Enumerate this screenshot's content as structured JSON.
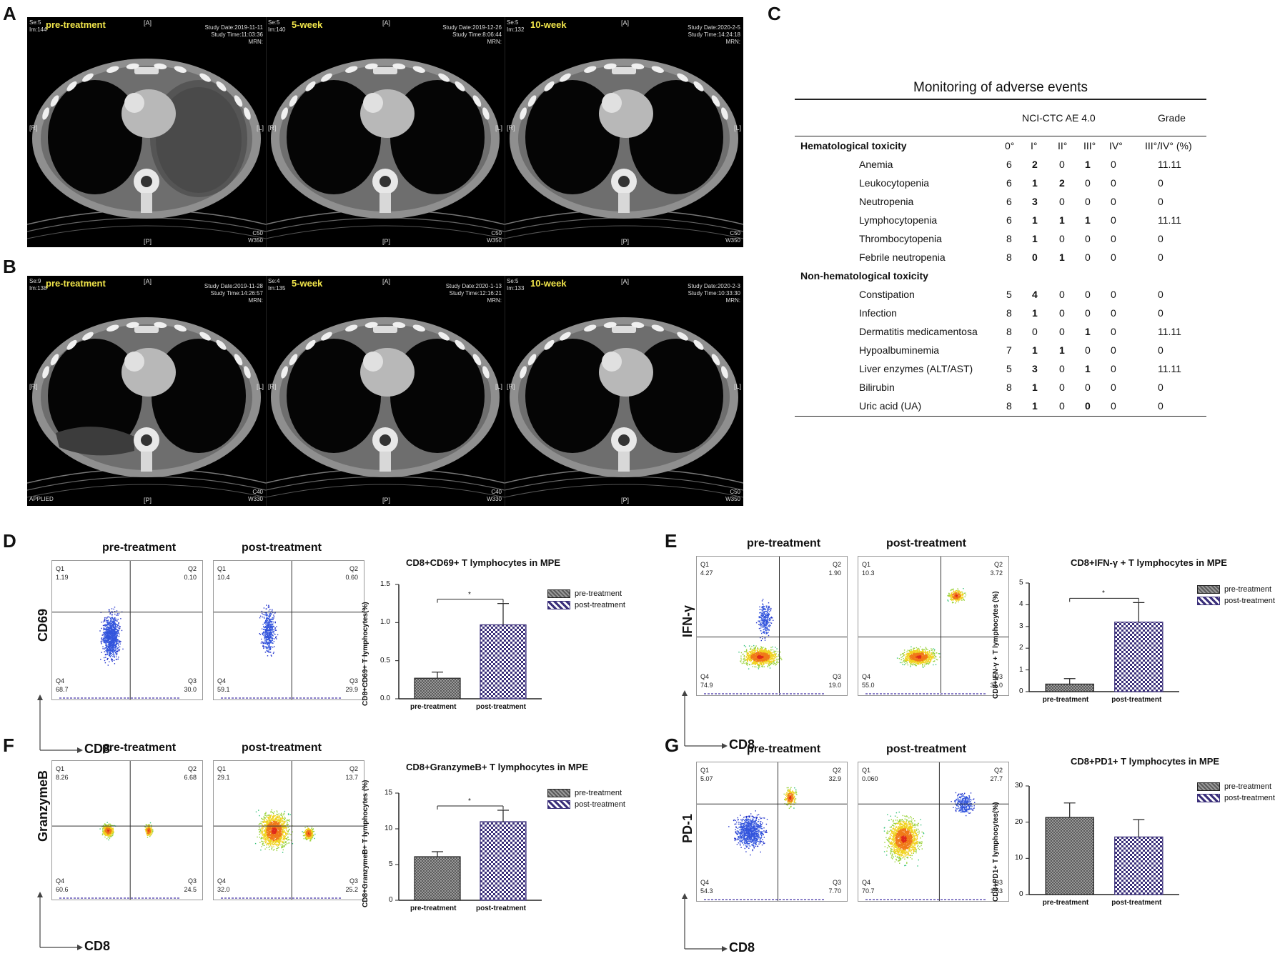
{
  "panels": {
    "A": "A",
    "B": "B",
    "C": "C",
    "D": "D",
    "E": "E",
    "F": "F",
    "G": "G"
  },
  "ct": {
    "markers": {
      "A": "[A]",
      "P": "[P]",
      "R": "[R]",
      "L": "[L]"
    },
    "rowA": [
      {
        "se": "Se:5",
        "im": "Im:144",
        "stage": "pre-treatment",
        "date": "Study Date:2019-11-11",
        "time": "Study Time:11:03:36",
        "mrn": "MRN:",
        "c": "C50",
        "w": "W350",
        "bl": ""
      },
      {
        "se": "Se:5",
        "im": "Im:140",
        "stage": "5-week",
        "date": "Study Date:2019-12-26",
        "time": "Study Time:8:06:44",
        "mrn": "MRN:",
        "c": "C50",
        "w": "W350",
        "bl": ""
      },
      {
        "se": "Se:5",
        "im": "Im:132",
        "stage": "10-week",
        "date": "Study Date:2020-2-5",
        "time": "Study Time:14:24:18",
        "mrn": "MRN:",
        "c": "C50",
        "w": "W350",
        "bl": ""
      }
    ],
    "rowB": [
      {
        "se": "Se:9",
        "im": "Im:138",
        "stage": "pre-treatment",
        "date": "Study Date:2019-11-28",
        "time": "Study Time:14:26:57",
        "mrn": "MRN:",
        "c": "C40",
        "w": "W330",
        "bl": "APPLIED"
      },
      {
        "se": "Se:4",
        "im": "Im:135",
        "stage": "5-week",
        "date": "Study Date:2020-1-13",
        "time": "Study Time:12:16:21",
        "mrn": "MRN:",
        "c": "C40",
        "w": "W330",
        "bl": ""
      },
      {
        "se": "Se:5",
        "im": "Im:133",
        "stage": "10-week",
        "date": "Study Date:2020-2-3",
        "time": "Study Time:10:33:30",
        "mrn": "MRN:",
        "c": "C50",
        "w": "W350",
        "bl": ""
      }
    ]
  },
  "table": {
    "title": "Monitoring of adverse events",
    "header_group": "NCI-CTC AE 4.0",
    "header_grade": "Grade",
    "cols": [
      "0°",
      "I°",
      "II°",
      "III°",
      "IV°",
      "III°/IV° (%)"
    ],
    "sections": [
      {
        "name": "Hematological toxicity",
        "rows": [
          {
            "label": "Anemia",
            "v": [
              "6",
              "2",
              "0",
              "1",
              "0",
              "11.11"
            ]
          },
          {
            "label": "Leukocytopenia",
            "v": [
              "6",
              "1",
              "2",
              "0",
              "0",
              "0"
            ]
          },
          {
            "label": "Neutropenia",
            "v": [
              "6",
              "3",
              "0",
              "0",
              "0",
              "0"
            ]
          },
          {
            "label": "Lymphocytopenia",
            "v": [
              "6",
              "1",
              "1",
              "1",
              "0",
              "11.11"
            ]
          },
          {
            "label": "Thrombocytopenia",
            "v": [
              "8",
              "1",
              "0",
              "0",
              "0",
              "0"
            ]
          },
          {
            "label": "Febrile neutropenia",
            "v": [
              "8",
              "0",
              "1",
              "0",
              "0",
              "0"
            ]
          }
        ]
      },
      {
        "name": "Non-hematological toxicity",
        "rows": [
          {
            "label": "Constipation",
            "v": [
              "5",
              "4",
              "0",
              "0",
              "0",
              "0"
            ]
          },
          {
            "label": "Infection",
            "v": [
              "8",
              "1",
              "0",
              "0",
              "0",
              "0"
            ]
          },
          {
            "label": "Dermatitis medicamentosa",
            "v": [
              "8",
              "0",
              "0",
              "1",
              "0",
              "11.11"
            ]
          },
          {
            "label": "Hypoalbuminemia",
            "v": [
              "7",
              "1",
              "1",
              "0",
              "0",
              "0"
            ]
          },
          {
            "label": "Liver enzymes (ALT/AST)",
            "v": [
              "5",
              "3",
              "0",
              "1",
              "0",
              "11.11"
            ]
          },
          {
            "label": "Bilirubin",
            "v": [
              "8",
              "1",
              "0",
              "0",
              "0",
              "0"
            ]
          },
          {
            "label": "Uric acid (UA)",
            "v": [
              "8",
              "1",
              "0",
              "0",
              "0",
              "0"
            ]
          }
        ]
      }
    ]
  },
  "flow": {
    "pre": "pre-treatment",
    "post": "post-treatment",
    "xmarker": "CD8",
    "D": {
      "ymarker": "CD69",
      "pre": {
        "Q1": "1.19",
        "Q2": "0.10",
        "Q3": "30.0",
        "Q4": "68.7"
      },
      "post": {
        "Q1": "10.4",
        "Q2": "0.60",
        "Q3": "29.9",
        "Q4": "59.1"
      }
    },
    "E": {
      "ymarker": "IFN-γ",
      "pre": {
        "Q1": "4.27",
        "Q2": "1.90",
        "Q3": "19.0",
        "Q4": "74.9"
      },
      "post": {
        "Q1": "10.3",
        "Q2": "3.72",
        "Q3": "31.0",
        "Q4": "55.0"
      }
    },
    "F": {
      "ymarker": "GranzymeB",
      "pre": {
        "Q1": "8.26",
        "Q2": "6.68",
        "Q3": "24.5",
        "Q4": "60.6"
      },
      "post": {
        "Q1": "29.1",
        "Q2": "13.7",
        "Q3": "25.2",
        "Q4": "32.0"
      }
    },
    "G": {
      "ymarker": "PD-1",
      "pre": {
        "Q1": "5.07",
        "Q2": "32.9",
        "Q3": "7.70",
        "Q4": "54.3"
      },
      "post": {
        "Q1": "0.060",
        "Q2": "27.7",
        "Q3": "1.53",
        "Q4": "70.7"
      }
    }
  },
  "chart_data": [
    {
      "type": "bar",
      "panel": "D",
      "title": "CD8+CD69+ T lymphocytes in MPE",
      "ylabel": "CD8+CD69+ T lymphocytes(%)",
      "categories": [
        "pre-treatment",
        "post-treatment"
      ],
      "values": [
        0.27,
        0.97
      ],
      "errors": [
        0.08,
        0.28
      ],
      "ylim": [
        0,
        1.5
      ],
      "yticks": [
        0.0,
        0.5,
        1.0,
        1.5
      ],
      "yticklabels": [
        "0.0",
        "0.5",
        "1.0",
        "1.5"
      ],
      "significance": "*",
      "legend": [
        "pre-treatment",
        "post-treatment"
      ]
    },
    {
      "type": "bar",
      "panel": "E",
      "title": "CD8+IFN-γ + T lymphocytes in MPE",
      "ylabel": "CD8+IFN-γ + T lymphocytes (%)",
      "categories": [
        "pre-treatment",
        "post-treatment"
      ],
      "values": [
        0.35,
        3.2
      ],
      "errors": [
        0.25,
        0.9
      ],
      "ylim": [
        0,
        5
      ],
      "yticks": [
        0,
        1,
        2,
        3,
        4,
        5
      ],
      "yticklabels": [
        "0",
        "1",
        "2",
        "3",
        "4",
        "5"
      ],
      "significance": "*",
      "legend": [
        "pre-treatment",
        "post-treatment"
      ]
    },
    {
      "type": "bar",
      "panel": "F",
      "title": "CD8+GranzymeB+ T lymphocytes in MPE",
      "ylabel": "CD8+GranzymeB+ T lymphocytes (%)",
      "categories": [
        "pre-treatment",
        "post-treatment"
      ],
      "values": [
        6.1,
        11.0
      ],
      "errors": [
        0.7,
        1.6
      ],
      "ylim": [
        0,
        15
      ],
      "yticks": [
        0,
        5,
        10,
        15
      ],
      "yticklabels": [
        "0",
        "5",
        "10",
        "15"
      ],
      "significance": "*",
      "legend": [
        "pre-treatment",
        "post-treatment"
      ]
    },
    {
      "type": "bar",
      "panel": "G",
      "title": "CD8+PD1+ T lymphocytes in MPE",
      "ylabel": "CD8+PD1+ T lymphocytes(%)",
      "categories": [
        "pre-treatment",
        "post-treatment"
      ],
      "values": [
        21.3,
        15.9
      ],
      "errors": [
        4.0,
        4.8
      ],
      "ylim": [
        0,
        30
      ],
      "yticks": [
        0,
        10,
        20,
        30
      ],
      "yticklabels": [
        "0",
        "10",
        "20",
        "30"
      ],
      "significance": "",
      "legend": [
        "pre-treatment",
        "post-treatment"
      ]
    }
  ]
}
